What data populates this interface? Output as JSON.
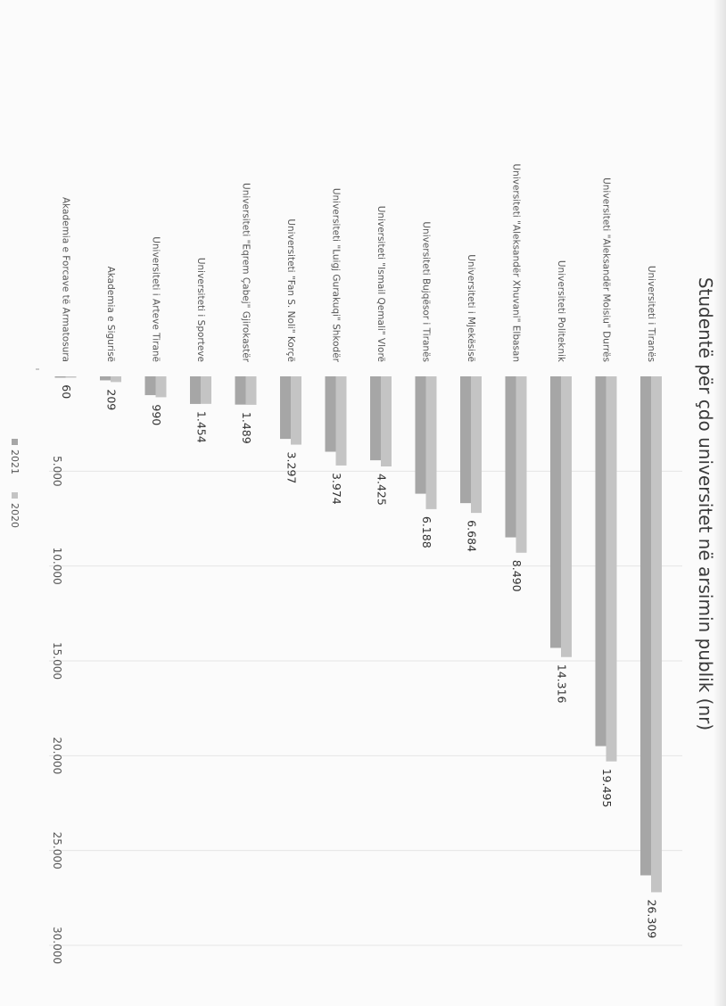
{
  "chart_data": {
    "type": "bar",
    "orientation": "horizontal",
    "title": "Studentë për çdo universitet në arsimin publik (nr)",
    "categories": [
      "Universiteti i Tiranës",
      "Universiteti \"Aleksandër Moisiu\" Durrës",
      "Universiteti Politeknik",
      "Universiteti \"Aleksandër Xhuvani\" Elbasan",
      "Universiteti i Mjekësisë",
      "Universiteti Bujqësor i Tiranës",
      "Universiteti \"Ismail Qemali\" Vlorë",
      "Universiteti \"Luigj Gurakuqi\" Shkodër",
      "Universiteti \"Fan S. Noli\" Korçë",
      "Universiteti \"Eqrem Çabej\" Gjirokastër",
      "Universiteti i Sporteve",
      "Universiteti i Arteve Tiranë",
      "Akademia e Sigurisë",
      "Akademia e Forcave të Armatosura"
    ],
    "series": [
      {
        "name": "2021",
        "values": [
          26309,
          19495,
          14316,
          8490,
          6684,
          6188,
          4425,
          3974,
          3297,
          1489,
          1454,
          990,
          209,
          60
        ]
      },
      {
        "name": "2020",
        "values": [
          27200,
          20300,
          14800,
          9300,
          7200,
          7000,
          4750,
          4700,
          3600,
          1500,
          1450,
          1100,
          300,
          60
        ]
      }
    ],
    "data_labels": [
      "26.309",
      "19.495",
      "14.316",
      "8.490",
      "6.684",
      "6.188",
      "4.425",
      "3.974",
      "3.297",
      "1.489",
      "1.454",
      "990",
      "209",
      "60"
    ],
    "ticks": [
      {
        "value": 5000,
        "label": "5.000"
      },
      {
        "value": 10000,
        "label": "10.000"
      },
      {
        "value": 15000,
        "label": "15.000"
      },
      {
        "value": 20000,
        "label": "20.000"
      },
      {
        "value": 25000,
        "label": "25.000"
      },
      {
        "value": 30000,
        "label": "30.000"
      }
    ],
    "xlim": [
      0,
      30000
    ],
    "grid": true,
    "legend_position": "bottom",
    "colors": {
      "2021": "#a6a6a6",
      "2020": "#c4c4c4",
      "text": "#555555",
      "title": "#3a3a3a",
      "grid": "#e6e6e6"
    }
  }
}
